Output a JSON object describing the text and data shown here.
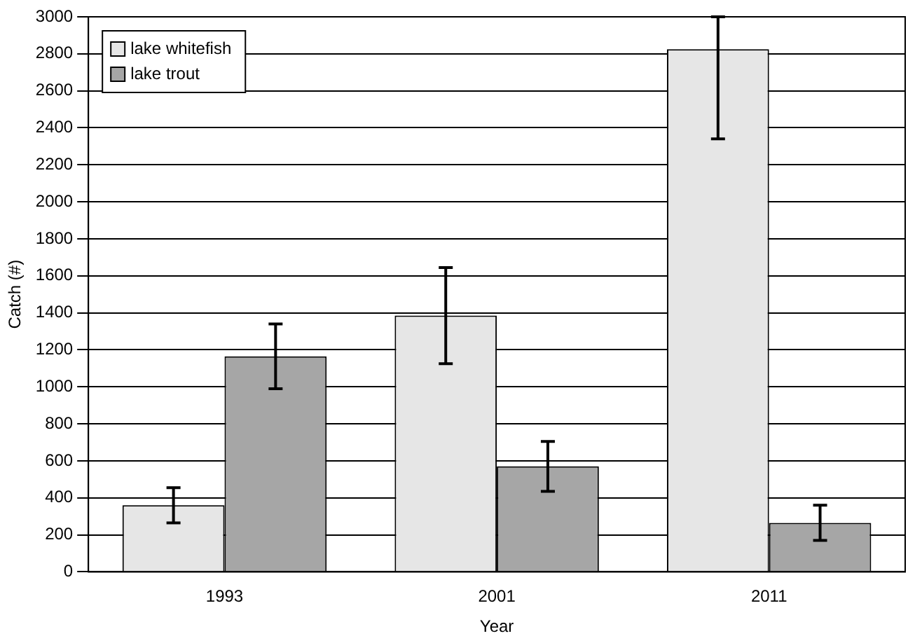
{
  "chart_data": {
    "type": "bar",
    "xlabel": "Year",
    "ylabel": "Catch (#)",
    "categories": [
      "1993",
      "2001",
      "2011"
    ],
    "series": [
      {
        "name": "lake whitefish",
        "color": "#e6e6e6",
        "values": [
          360,
          1385,
          2825
        ],
        "errors": [
          95,
          260,
          [
            2340,
            3000
          ]
        ]
      },
      {
        "name": "lake trout",
        "color": "#a6a6a6",
        "values": [
          1165,
          570,
          265
        ],
        "errors": [
          175,
          135,
          95
        ]
      }
    ],
    "ylim": [
      0,
      3000
    ],
    "yticks": [
      0,
      200,
      400,
      600,
      800,
      1000,
      1200,
      1400,
      1600,
      1800,
      2000,
      2200,
      2400,
      2600,
      2800,
      3000
    ],
    "grid": "y",
    "legend": "top left"
  }
}
